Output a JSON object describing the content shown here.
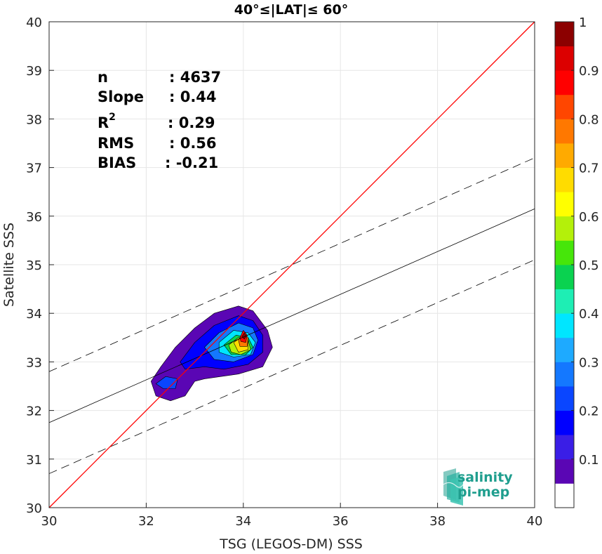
{
  "chart_data": {
    "type": "heatmap",
    "title": "40°≤|LAT|≤ 60°",
    "xlabel": "TSG (LEGOS-DM) SSS",
    "ylabel": "Satellite SSS",
    "xlim": [
      30,
      40
    ],
    "ylim": [
      30,
      40
    ],
    "xticks": [
      30,
      32,
      34,
      36,
      38,
      40
    ],
    "yticks": [
      30,
      31,
      32,
      33,
      34,
      35,
      36,
      37,
      38,
      39,
      40
    ],
    "grid": true,
    "stats": [
      {
        "label": "n",
        "value": ": 4637"
      },
      {
        "label": "Slope",
        "value": ": 0.44"
      },
      {
        "label": "R",
        "sup": "2",
        "value": ": 0.29"
      },
      {
        "label": "RMS",
        "value": ": 0.56"
      },
      {
        "label": "BIAS",
        "value": ": -0.21"
      }
    ],
    "identity_line": {
      "x": [
        30,
        40
      ],
      "y": [
        30,
        40
      ],
      "color": "#ff0000"
    },
    "fit_line": {
      "x": [
        30,
        40
      ],
      "y": [
        31.75,
        36.15
      ],
      "color": "#000000"
    },
    "fit_bounds": [
      {
        "x": [
          30,
          40
        ],
        "y": [
          32.8,
          37.2
        ],
        "style": "dashed"
      },
      {
        "x": [
          30,
          40
        ],
        "y": [
          30.7,
          35.1
        ],
        "style": "dashed"
      }
    ],
    "density_peak": {
      "x": 34.0,
      "y": 33.55
    },
    "density_levels": [
      {
        "level": 0.05,
        "points": [
          [
            32.1,
            32.6
          ],
          [
            32.3,
            32.9
          ],
          [
            32.6,
            33.3
          ],
          [
            33.0,
            33.7
          ],
          [
            33.4,
            34.0
          ],
          [
            33.9,
            34.15
          ],
          [
            34.2,
            34.05
          ],
          [
            34.5,
            33.65
          ],
          [
            34.6,
            33.3
          ],
          [
            34.4,
            32.9
          ],
          [
            33.9,
            32.75
          ],
          [
            33.2,
            32.65
          ],
          [
            33.0,
            32.6
          ],
          [
            32.8,
            32.3
          ],
          [
            32.5,
            32.2
          ],
          [
            32.2,
            32.3
          ]
        ]
      },
      {
        "level": 0.15,
        "points": [
          [
            32.7,
            33.0
          ],
          [
            33.0,
            33.4
          ],
          [
            33.4,
            33.75
          ],
          [
            33.9,
            33.95
          ],
          [
            34.2,
            33.85
          ],
          [
            34.4,
            33.55
          ],
          [
            34.4,
            33.2
          ],
          [
            34.1,
            32.95
          ],
          [
            33.6,
            32.85
          ],
          [
            33.2,
            32.9
          ],
          [
            32.8,
            32.85
          ]
        ]
      },
      {
        "level": 0.25,
        "points": [
          [
            33.2,
            33.3
          ],
          [
            33.5,
            33.6
          ],
          [
            33.9,
            33.8
          ],
          [
            34.2,
            33.7
          ],
          [
            34.3,
            33.45
          ],
          [
            34.2,
            33.15
          ],
          [
            33.8,
            33.0
          ],
          [
            33.4,
            33.05
          ]
        ]
      },
      {
        "level": 0.35,
        "points": [
          [
            33.5,
            33.4
          ],
          [
            33.8,
            33.65
          ],
          [
            34.1,
            33.6
          ],
          [
            34.25,
            33.4
          ],
          [
            34.15,
            33.15
          ],
          [
            33.8,
            33.1
          ],
          [
            33.5,
            33.2
          ]
        ]
      },
      {
        "level": 0.45,
        "points": [
          [
            33.6,
            33.35
          ],
          [
            33.85,
            33.55
          ],
          [
            34.1,
            33.5
          ],
          [
            34.2,
            33.3
          ],
          [
            34.05,
            33.15
          ],
          [
            33.75,
            33.15
          ]
        ]
      },
      {
        "level": 0.55,
        "points": [
          [
            33.7,
            33.35
          ],
          [
            33.9,
            33.5
          ],
          [
            34.1,
            33.45
          ],
          [
            34.15,
            33.25
          ],
          [
            33.95,
            33.15
          ],
          [
            33.75,
            33.2
          ]
        ]
      },
      {
        "level": 0.65,
        "points": [
          [
            33.8,
            33.4
          ],
          [
            33.95,
            33.5
          ],
          [
            34.1,
            33.42
          ],
          [
            34.1,
            33.25
          ],
          [
            33.9,
            33.2
          ]
        ]
      },
      {
        "level": 0.75,
        "points": [
          [
            33.9,
            33.45
          ],
          [
            34.0,
            33.6
          ],
          [
            34.1,
            33.5
          ],
          [
            34.08,
            33.32
          ],
          [
            33.93,
            33.32
          ]
        ]
      },
      {
        "level": 0.85,
        "points": [
          [
            33.93,
            33.5
          ],
          [
            34.0,
            33.65
          ],
          [
            34.08,
            33.55
          ],
          [
            34.05,
            33.4
          ],
          [
            33.95,
            33.42
          ]
        ]
      },
      {
        "level": 0.95,
        "points": [
          [
            33.97,
            33.52
          ],
          [
            34.02,
            33.6
          ],
          [
            34.06,
            33.53
          ],
          [
            34.02,
            33.47
          ]
        ]
      }
    ],
    "secondary_blob": {
      "level": 0.2,
      "points": [
        [
          32.2,
          32.55
        ],
        [
          32.4,
          32.7
        ],
        [
          32.65,
          32.65
        ],
        [
          32.6,
          32.45
        ],
        [
          32.35,
          32.45
        ]
      ]
    },
    "colorbar": {
      "min": 0,
      "max": 1,
      "ticks": [
        0.1,
        0.2,
        0.3,
        0.4,
        0.5,
        0.6,
        0.7,
        0.8,
        0.9,
        1
      ],
      "tick_labels": [
        "0.1",
        "0.2",
        "0.3",
        "0.4",
        "0.5",
        "0.6",
        "0.7",
        "0.8",
        "0.9",
        "1"
      ],
      "colors": [
        "#ffffff",
        "#5a06b4",
        "#3a1ee6",
        "#0000ff",
        "#0a46ff",
        "#1478ff",
        "#1eaaff",
        "#00e6ff",
        "#1eeeb4",
        "#0ad250",
        "#46e60a",
        "#b4f00a",
        "#ffff00",
        "#ffdc00",
        "#ffaa00",
        "#ff7800",
        "#ff4600",
        "#ff0000",
        "#dc0000",
        "#8c0000"
      ]
    }
  },
  "logo": {
    "line1": "salinity",
    "line2": "pi-mep"
  }
}
